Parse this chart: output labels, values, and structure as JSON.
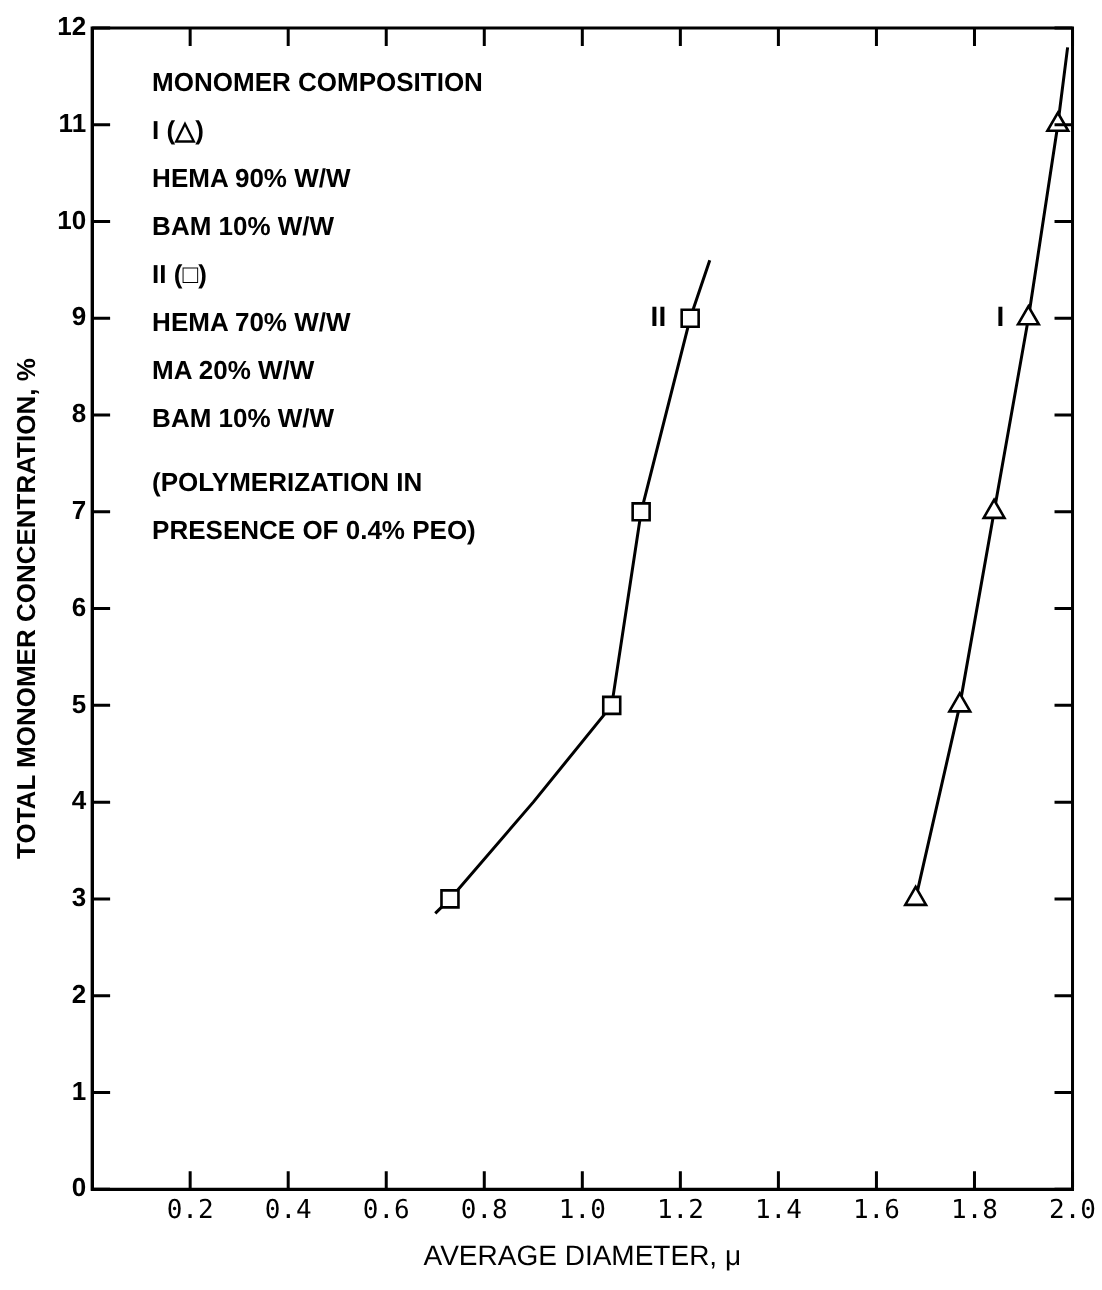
{
  "chart_data": {
    "type": "scatter",
    "xlabel": "AVERAGE DIAMETER, μ",
    "ylabel": "TOTAL MONOMER CONCENTRATION, %",
    "xlim": [
      0,
      2.0
    ],
    "xticks": [
      0.2,
      0.4,
      0.6,
      0.8,
      {
        "value": 1,
        "label": "1.0"
      },
      1.2,
      1.4,
      1.6,
      1.8,
      {
        "value": 2,
        "label": "2.0"
      }
    ],
    "ylim": [
      0,
      12
    ],
    "yticks": [
      0,
      1,
      2,
      3,
      4,
      5,
      6,
      7,
      8,
      9,
      10,
      11,
      12
    ],
    "grid": false,
    "series": [
      {
        "name": "II",
        "marker": "square",
        "color": "#000000",
        "x": [
          0.73,
          1.06,
          1.12,
          1.22
        ],
        "values": [
          3,
          5,
          7,
          9
        ]
      },
      {
        "name": "I",
        "marker": "triangle",
        "color": "#000000",
        "x": [
          1.68,
          1.77,
          1.84,
          1.91,
          1.97
        ],
        "values": [
          3,
          5,
          7,
          9,
          11
        ]
      },
      {
        "type": "line",
        "marker": "none",
        "line_style": "solid",
        "color": "#000000",
        "x": [
          0.7,
          0.73,
          0.9,
          1.06,
          1.12,
          1.22,
          1.26
        ],
        "values": [
          2.85,
          3,
          4,
          5,
          7,
          9,
          9.6
        ]
      },
      {
        "type": "line",
        "marker": "none",
        "line_style": "solid",
        "color": "#000000",
        "x": [
          1.68,
          1.77,
          1.84,
          1.91,
          1.97,
          1.99
        ],
        "values": [
          3,
          5,
          7,
          9,
          11,
          11.8
        ]
      }
    ],
    "annotations": [
      "MONOMER COMPOSITION",
      "I (△)",
      "HEMA 90% W/W",
      "BAM 10% W/W",
      "II (□)",
      "HEMA 70% W/W",
      "MA 20% W/W",
      "BAM 10% W/W",
      "(POLYMERIZATION IN",
      "PRESENCE OF 0.4% PEO)"
    ]
  }
}
